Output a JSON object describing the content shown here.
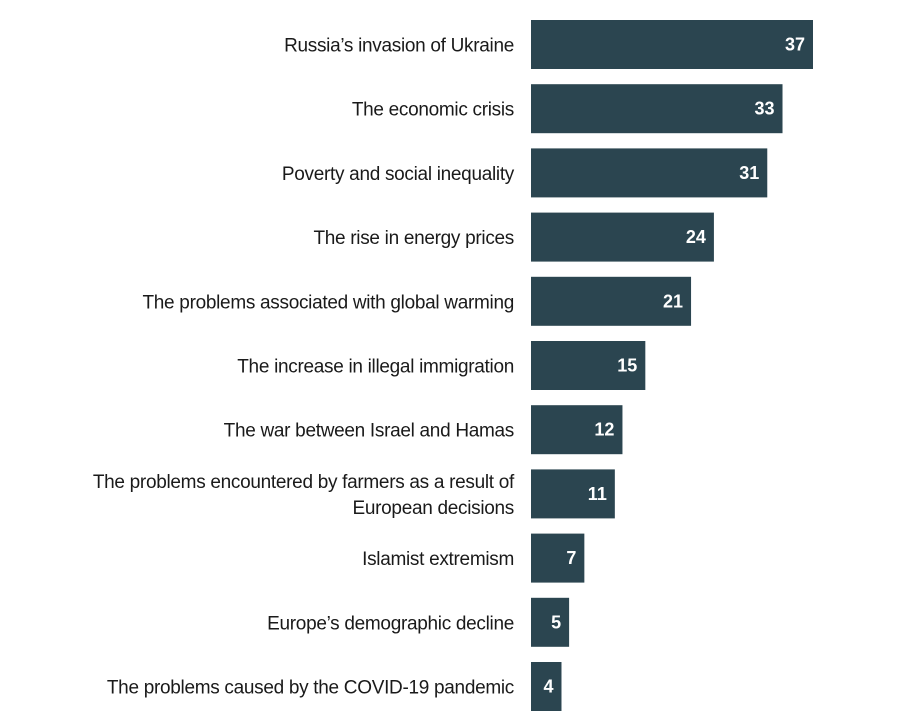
{
  "chart_data": {
    "type": "bar",
    "orientation": "horizontal",
    "title": "",
    "xlabel": "",
    "ylabel": "",
    "xlim": [
      0,
      37
    ],
    "grid": false,
    "bar_color": "#2b4550",
    "categories": [
      [
        "Russia’s invasion of Ukraine"
      ],
      [
        "The economic crisis"
      ],
      [
        "Poverty and social inequality"
      ],
      [
        "The rise in energy prices"
      ],
      [
        "The problems associated with global warming"
      ],
      [
        "The increase in illegal immigration"
      ],
      [
        "The war between Israel and Hamas"
      ],
      [
        "The problems encountered by farmers as a result of",
        "European decisions"
      ],
      [
        "Islamist extremism"
      ],
      [
        "Europe’s demographic decline"
      ],
      [
        "The problems caused by the COVID-19 pandemic"
      ]
    ],
    "values": [
      37,
      33,
      31,
      24,
      21,
      15,
      12,
      11,
      7,
      5,
      4
    ]
  }
}
